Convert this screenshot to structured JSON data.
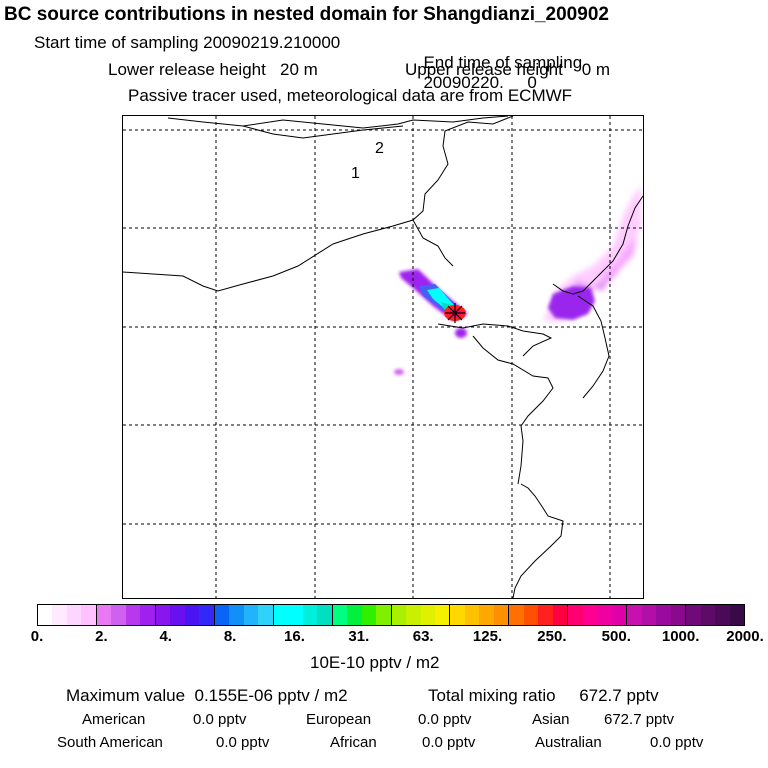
{
  "title": "BC  source contributions in nested domain for Shangdianzi_200902",
  "header": {
    "start_label": "Start time of sampling",
    "start_value": "20090219.210000",
    "end_label": "End time of sampling",
    "end_value": "20090220.     0",
    "lower_label": "Lower release height",
    "lower_value": "20 m",
    "upper_label": "Upper release height",
    "upper_value": "0 m",
    "passive_note": "Passive tracer used, meteorological data are from ECMWF"
  },
  "map": {
    "region_labels": [
      "1",
      "2"
    ],
    "receptor_marker": "star-marker"
  },
  "colorbar": {
    "ticks": [
      "0.",
      "2.",
      "4.",
      "8.",
      "16.",
      "31.",
      "63.",
      "125.",
      "250.",
      "500.",
      "1000.",
      "2000."
    ],
    "unit": "10E-10 pptv / m2",
    "colors": [
      [
        "#ffffff",
        "#ffeaff",
        "#ffd6ff",
        "#ffc2ff"
      ],
      [
        "#e879f5",
        "#d060f0",
        "#b838ee",
        "#a020f0"
      ],
      [
        "#8a16ee",
        "#6a10f0",
        "#4b14f2",
        "#3228f8"
      ],
      [
        "#0a64f5",
        "#1090f8",
        "#20b4fa",
        "#30d2fa"
      ],
      [
        "#00ffff",
        "#00ffff",
        "#00eedd",
        "#00e0c0"
      ],
      [
        "#00ff80",
        "#00f040",
        "#30f000",
        "#80f000"
      ],
      [
        "#a8f000",
        "#c8f000",
        "#e0f000",
        "#f4f000"
      ],
      [
        "#ffd800",
        "#ffc000",
        "#ffa800",
        "#ff9000"
      ],
      [
        "#ff7000",
        "#ff5000",
        "#ff2020",
        "#ff0040"
      ],
      [
        "#ff0070",
        "#ff0090",
        "#f000a0",
        "#e000aa"
      ],
      [
        "#c810b0",
        "#b010a8",
        "#9a0a9e",
        "#8a0a8e"
      ],
      [
        "#700a78",
        "#5e0a68",
        "#4a0a58",
        "#3a0a48"
      ]
    ]
  },
  "summary": {
    "max_label": "Maximum value",
    "max_value": "0.155E-06 pptv / m2",
    "total_label": "Total mixing ratio",
    "total_value": "672.7 pptv"
  },
  "regions": [
    {
      "name": "American",
      "value": "0.0 pptv"
    },
    {
      "name": "European",
      "value": "0.0 pptv"
    },
    {
      "name": "Asian",
      "value": "672.7 pptv"
    },
    {
      "name": "South American",
      "value": "0.0 pptv"
    },
    {
      "name": "African",
      "value": "0.0 pptv"
    },
    {
      "name": "Australian",
      "value": "0.0 pptv"
    }
  ]
}
